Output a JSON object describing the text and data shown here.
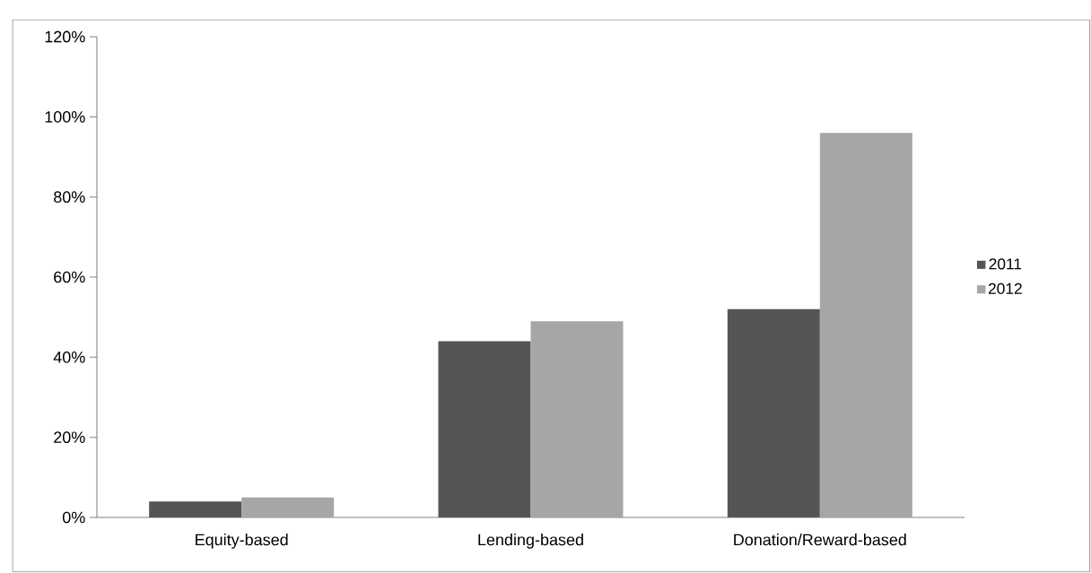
{
  "chart_data": {
    "type": "bar",
    "categories": [
      "Equity-based",
      "Lending-based",
      "Donation/Reward-based"
    ],
    "series": [
      {
        "name": "2011",
        "color": "#555555",
        "values": [
          4,
          44,
          52
        ]
      },
      {
        "name": "2012",
        "color": "#a6a6a6",
        "values": [
          5,
          49,
          96
        ]
      }
    ],
    "ylim": [
      0,
      120
    ],
    "yticks": [
      {
        "value": 0,
        "label": "0%"
      },
      {
        "value": 20,
        "label": "20%"
      },
      {
        "value": 40,
        "label": "40%"
      },
      {
        "value": 60,
        "label": "60%"
      },
      {
        "value": 80,
        "label": "80%"
      },
      {
        "value": 100,
        "label": "100%"
      },
      {
        "value": 120,
        "label": "120%"
      }
    ],
    "grid": false,
    "legend": "right"
  }
}
